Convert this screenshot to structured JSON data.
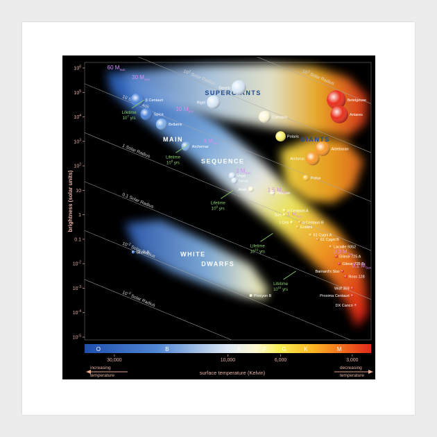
{
  "chart_data": {
    "type": "scatter",
    "ylabel": "brightness (solar units)",
    "xlabel": "surface temperature (Kelvin)",
    "x_scale": "log",
    "x_reversed": true,
    "y_scale": "log",
    "xlim": [
      40000,
      2500
    ],
    "ylim": [
      1e-05,
      1000000
    ],
    "y_ticks": [
      {
        "label": "10",
        "exp": "6"
      },
      {
        "label": "10",
        "exp": "5"
      },
      {
        "label": "10",
        "exp": "4"
      },
      {
        "label": "10",
        "exp": "3"
      },
      {
        "label": "10",
        "exp": "2"
      },
      {
        "label": "10",
        "exp": ""
      },
      {
        "label": "1",
        "exp": ""
      },
      {
        "label": "0.1",
        "exp": ""
      },
      {
        "label": "10",
        "exp": "-2"
      },
      {
        "label": "10",
        "exp": "-3"
      },
      {
        "label": "10",
        "exp": "-4"
      },
      {
        "label": "10",
        "exp": "-5"
      }
    ],
    "x_ticks": [
      {
        "label": "30,000",
        "value": 30000
      },
      {
        "label": "10,000",
        "value": 10000
      },
      {
        "label": "6,000",
        "value": 6000
      },
      {
        "label": "3,000",
        "value": 3000
      }
    ],
    "spectral_classes": [
      {
        "label": "O",
        "temp": 35000
      },
      {
        "label": "B",
        "temp": 18000
      },
      {
        "label": "A",
        "temp": 9000
      },
      {
        "label": "F",
        "temp": 7000
      },
      {
        "label": "G",
        "temp": 5800
      },
      {
        "label": "K",
        "temp": 4700
      },
      {
        "label": "M",
        "temp": 3400
      }
    ],
    "temperature_direction": {
      "left": [
        "increasing",
        "temperature"
      ],
      "right": [
        "decreasing",
        "temperature"
      ]
    },
    "regions": [
      {
        "label": "SUPERGIANTS",
        "temp": 9500,
        "lum": 79400
      },
      {
        "label": "GIANTS",
        "temp": 4300,
        "lum": 1000
      },
      {
        "label": "MAIN",
        "temp": 17000,
        "lum": 1000
      },
      {
        "label": "SEQUENCE",
        "temp": 10500,
        "lum": 125
      },
      {
        "label": "WHITE",
        "temp": 14000,
        "lum": 0.02
      },
      {
        "label": "DWARFS",
        "temp": 11000,
        "lum": 0.008
      }
    ],
    "radius_lines": [
      {
        "base": "10",
        "exp": "3",
        "suffix": " Solar Radius",
        "radius": 1000
      },
      {
        "base": "10",
        "exp": "2",
        "suffix": " Solar Radius",
        "radius": 100
      },
      {
        "base": "10",
        "exp": "",
        "suffix": " Solar Radii",
        "radius": 10
      },
      {
        "base": "1",
        "exp": "",
        "suffix": " Solar Radius",
        "radius": 1
      },
      {
        "base": "0.1",
        "exp": "",
        "suffix": " Solar Radius",
        "radius": 0.1
      },
      {
        "base": "10",
        "exp": "-2",
        "suffix": " Solar Radius",
        "radius": 0.01
      },
      {
        "base": "10",
        "exp": "-3",
        "suffix": " Solar Radius",
        "radius": 0.001
      }
    ],
    "mass_labels": [
      {
        "value": "60 M",
        "sub": "Sun",
        "temp": 33000,
        "lum": 1000000
      },
      {
        "value": "30 M",
        "sub": "Sun",
        "temp": 26000,
        "lum": 400000
      },
      {
        "value": "10 M",
        "sub": "Sun",
        "temp": 17000,
        "lum": 20000
      },
      {
        "value": "6 M",
        "sub": "Sun",
        "temp": 13000,
        "lum": 1000
      },
      {
        "value": "3 M",
        "sub": "Sun",
        "temp": 9500,
        "lum": 60
      },
      {
        "value": "1.5 M",
        "sub": "Sun",
        "temp": 7000,
        "lum": 10
      },
      {
        "value": "1 M",
        "sub": "Sun",
        "temp": 5800,
        "lum": 1
      },
      {
        "value": "0.3 M",
        "sub": "Sun",
        "temp": 3700,
        "lum": 0.03
      },
      {
        "value": "0.1 M",
        "sub": "Sun",
        "temp": 3100,
        "lum": 0.008
      }
    ],
    "lifetimes": [
      {
        "label": "Lifetime",
        "base": "10",
        "exp": "7",
        "unit": " yrs",
        "temp": 26000,
        "lum": 20000
      },
      {
        "label": "Lifetime",
        "base": "10",
        "exp": "8",
        "unit": " yrs",
        "temp": 17000,
        "lum": 300
      },
      {
        "label": "Lifetime",
        "base": "10",
        "exp": "9",
        "unit": " yrs",
        "temp": 11000,
        "lum": 4
      },
      {
        "label": "Lifetime",
        "base": "10",
        "exp": "10",
        "unit": " yrs",
        "temp": 7500,
        "lum": 0.07
      },
      {
        "label": "Lifetime",
        "base": "10",
        "exp": "11",
        "unit": " yrs",
        "temp": 6000,
        "lum": 0.002
      }
    ],
    "stars": [
      {
        "name": "Deneb",
        "temp": 9000,
        "lum": 158000
      },
      {
        "name": "Rigel",
        "temp": 11500,
        "lum": 40000
      },
      {
        "name": "Betelgeuse",
        "temp": 3500,
        "lum": 50000
      },
      {
        "name": "Antares",
        "temp": 3400,
        "lum": 12600
      },
      {
        "name": "Canopus",
        "temp": 7000,
        "lum": 10000
      },
      {
        "name": "Polaris",
        "temp": 6000,
        "lum": 1600
      },
      {
        "name": "Aldebaran",
        "temp": 4000,
        "lum": 500
      },
      {
        "name": "Arcturus",
        "temp": 4400,
        "lum": 200
      },
      {
        "name": "Pollux",
        "temp": 4700,
        "lum": 32
      },
      {
        "name": "β Centauri",
        "temp": 24000,
        "lum": 50000
      },
      {
        "name": "Spica",
        "temp": 22000,
        "lum": 13000
      },
      {
        "name": "Bellatrix",
        "temp": 19000,
        "lum": 5000
      },
      {
        "name": "Archernar",
        "temp": 15000,
        "lum": 630
      },
      {
        "name": "Vega",
        "temp": 9600,
        "lum": 40
      },
      {
        "name": "Sirius",
        "temp": 9400,
        "lum": 25
      },
      {
        "name": "Altair",
        "temp": 8000,
        "lum": 11
      },
      {
        "name": "Procyon",
        "temp": 6500,
        "lum": 8
      },
      {
        "name": "α Centauri A",
        "temp": 5800,
        "lum": 1.5
      },
      {
        "name": "Sun",
        "temp": 5800,
        "lum": 1
      },
      {
        "name": "α Centauri B",
        "temp": 5000,
        "lum": 0.5
      },
      {
        "name": "τ Ceti",
        "temp": 5400,
        "lum": 0.5
      },
      {
        "name": "Eridani",
        "temp": 5100,
        "lum": 0.32
      },
      {
        "name": "61 Cygni A",
        "temp": 4500,
        "lum": 0.15
      },
      {
        "name": "61 Cygni B",
        "temp": 4200,
        "lum": 0.1
      },
      {
        "name": "Lacaille 9352",
        "temp": 3700,
        "lum": 0.05
      },
      {
        "name": "Gliese 725 A",
        "temp": 3500,
        "lum": 0.02
      },
      {
        "name": "Gliese 725 B",
        "temp": 3400,
        "lum": 0.01
      },
      {
        "name": "Barnard's Star",
        "temp": 3300,
        "lum": 0.005
      },
      {
        "name": "Ross 128",
        "temp": 3200,
        "lum": 0.003
      },
      {
        "name": "Wolf 359",
        "temp": 3000,
        "lum": 0.001
      },
      {
        "name": "Proxima Centauri",
        "temp": 3000,
        "lum": 0.0005
      },
      {
        "name": "DX Cancri",
        "temp": 2900,
        "lum": 0.0002
      },
      {
        "name": "Sirius B",
        "temp": 25000,
        "lum": 0.03
      },
      {
        "name": "Procyon B",
        "temp": 8000,
        "lum": 0.0005
      }
    ]
  }
}
